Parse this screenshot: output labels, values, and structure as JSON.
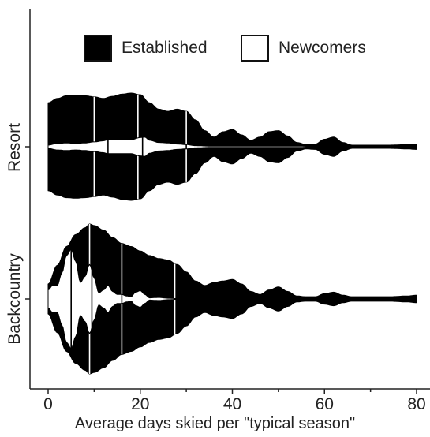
{
  "chart_data": {
    "type": "violin",
    "orientation": "horizontal",
    "xlabel": "Average days skied per \"typical season\"",
    "ylabel": "",
    "xlim": [
      0,
      80
    ],
    "xticks": [
      0,
      20,
      40,
      60,
      80
    ],
    "categories": [
      "Resort",
      "Backcountry"
    ],
    "legend": {
      "placement": "top",
      "entries": [
        "Established",
        "Newcomers"
      ]
    },
    "series": [
      {
        "name": "Established",
        "color": "#000000",
        "groups": {
          "Resort": {
            "quartiles": [
              10,
              19.5,
              30
            ],
            "density": [
              [
                0,
                0.82
              ],
              [
                2,
                0.9
              ],
              [
                4,
                0.95
              ],
              [
                6,
                0.96
              ],
              [
                8,
                0.95
              ],
              [
                10,
                0.93
              ],
              [
                12,
                0.9
              ],
              [
                14,
                0.94
              ],
              [
                16,
                0.98
              ],
              [
                18,
                1.0
              ],
              [
                20,
                0.97
              ],
              [
                22,
                0.82
              ],
              [
                24,
                0.7
              ],
              [
                26,
                0.66
              ],
              [
                28,
                0.7
              ],
              [
                30,
                0.66
              ],
              [
                32,
                0.5
              ],
              [
                34,
                0.3
              ],
              [
                36,
                0.18
              ],
              [
                38,
                0.28
              ],
              [
                40,
                0.32
              ],
              [
                42,
                0.22
              ],
              [
                44,
                0.12
              ],
              [
                46,
                0.18
              ],
              [
                48,
                0.28
              ],
              [
                50,
                0.3
              ],
              [
                52,
                0.2
              ],
              [
                54,
                0.08
              ],
              [
                56,
                0.04
              ],
              [
                58,
                0.05
              ],
              [
                60,
                0.14
              ],
              [
                62,
                0.18
              ],
              [
                64,
                0.08
              ],
              [
                66,
                0.03
              ],
              [
                70,
                0.03
              ],
              [
                74,
                0.03
              ],
              [
                78,
                0.04
              ],
              [
                80,
                0.05
              ]
            ]
          },
          "Backcountry": {
            "quartiles": [
              9,
              16,
              27.5
            ],
            "density": [
              [
                0,
                0.2
              ],
              [
                2,
                0.45
              ],
              [
                4,
                0.7
              ],
              [
                6,
                0.86
              ],
              [
                8,
                0.95
              ],
              [
                9,
                1.0
              ],
              [
                10,
                0.98
              ],
              [
                12,
                0.92
              ],
              [
                14,
                0.82
              ],
              [
                16,
                0.74
              ],
              [
                18,
                0.7
              ],
              [
                20,
                0.64
              ],
              [
                22,
                0.58
              ],
              [
                24,
                0.54
              ],
              [
                26,
                0.52
              ],
              [
                28,
                0.46
              ],
              [
                30,
                0.36
              ],
              [
                32,
                0.24
              ],
              [
                34,
                0.18
              ],
              [
                36,
                0.22
              ],
              [
                38,
                0.24
              ],
              [
                40,
                0.26
              ],
              [
                42,
                0.2
              ],
              [
                44,
                0.1
              ],
              [
                46,
                0.06
              ],
              [
                48,
                0.12
              ],
              [
                50,
                0.16
              ],
              [
                52,
                0.1
              ],
              [
                54,
                0.04
              ],
              [
                56,
                0.03
              ],
              [
                58,
                0.03
              ],
              [
                60,
                0.07
              ],
              [
                62,
                0.09
              ],
              [
                64,
                0.05
              ],
              [
                66,
                0.03
              ],
              [
                70,
                0.03
              ],
              [
                74,
                0.03
              ],
              [
                78,
                0.04
              ],
              [
                80,
                0.05
              ]
            ]
          }
        }
      },
      {
        "name": "Newcomers",
        "color": "#ffffff",
        "groups": {
          "Resort": {
            "quartiles": [
              13,
              20.5,
              30
            ],
            "density": [
              [
                0,
                0.03
              ],
              [
                2,
                0.06
              ],
              [
                4,
                0.07
              ],
              [
                6,
                0.06
              ],
              [
                8,
                0.07
              ],
              [
                10,
                0.09
              ],
              [
                12,
                0.11
              ],
              [
                13,
                0.13
              ],
              [
                14,
                0.13
              ],
              [
                16,
                0.13
              ],
              [
                18,
                0.13
              ],
              [
                20,
                0.17
              ],
              [
                21,
                0.18
              ],
              [
                22,
                0.12
              ],
              [
                24,
                0.08
              ],
              [
                26,
                0.07
              ],
              [
                28,
                0.05
              ],
              [
                30,
                0.04
              ],
              [
                32,
                0.02
              ],
              [
                35,
                0.012
              ],
              [
                40,
                0.01
              ],
              [
                45,
                0.01
              ],
              [
                50,
                0.01
              ],
              [
                55,
                0.01
              ],
              [
                58,
                0.0
              ]
            ]
          },
          "Backcountry": {
            "quartiles": [
              5,
              9.5,
              16
            ],
            "density": [
              [
                0,
                0.12
              ],
              [
                1,
                0.18
              ],
              [
                2,
                0.18
              ],
              [
                3,
                0.35
              ],
              [
                4,
                0.58
              ],
              [
                5,
                0.66
              ],
              [
                6,
                0.5
              ],
              [
                7,
                0.22
              ],
              [
                8,
                0.3
              ],
              [
                9,
                0.46
              ],
              [
                10,
                0.28
              ],
              [
                11,
                0.08
              ],
              [
                12,
                0.12
              ],
              [
                13,
                0.18
              ],
              [
                14,
                0.1
              ],
              [
                15,
                0.06
              ],
              [
                16,
                0.06
              ],
              [
                17,
                0.04
              ],
              [
                18,
                0.03
              ],
              [
                19,
                0.09
              ],
              [
                20,
                0.11
              ],
              [
                21,
                0.06
              ],
              [
                22,
                0.015
              ],
              [
                24,
                0.02
              ],
              [
                26,
                0.01
              ],
              [
                28,
                0.005
              ],
              [
                30,
                0.0
              ]
            ]
          }
        }
      }
    ]
  }
}
